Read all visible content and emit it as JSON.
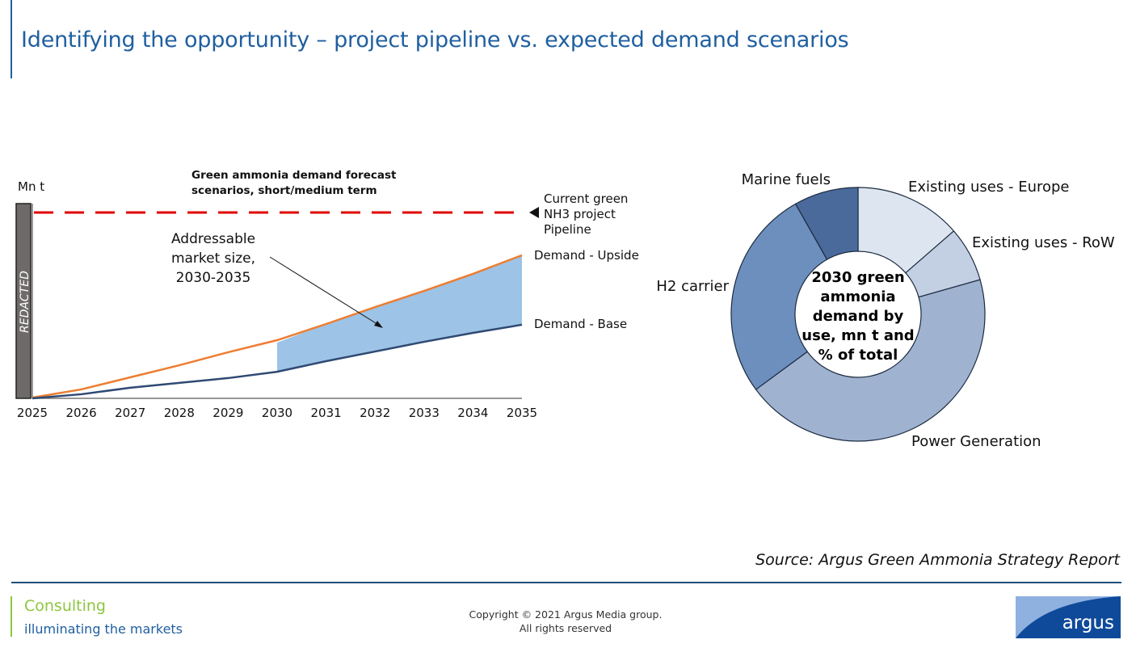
{
  "header": {
    "title": "Identifying the opportunity – project pipeline vs. expected demand scenarios"
  },
  "chart_data": [
    {
      "type": "line",
      "title": "Green ammonia demand forecast scenarios, short/medium term",
      "title_lines": [
        "Green ammonia demand forecast",
        "scenarios, short/medium term"
      ],
      "ylabel": "Mn t",
      "y_axis_redacted_label": "REDACTED",
      "x": [
        "2025",
        "2026",
        "2027",
        "2028",
        "2029",
        "2030",
        "2031",
        "2032",
        "2033",
        "2034",
        "2035"
      ],
      "ylim_relative": [
        0,
        100
      ],
      "series": [
        {
          "name": "Demand - Upside",
          "color": "#ed7d31",
          "values": [
            0.4,
            4.8,
            11.3,
            17.8,
            24.8,
            31.3,
            40,
            49.1,
            57.8,
            67,
            77
          ]
        },
        {
          "name": "Demand - Base",
          "color": "#2f4a73",
          "values": [
            0,
            2.2,
            5.7,
            8.3,
            10.9,
            14.3,
            20,
            25.2,
            30.4,
            35.2,
            39.6
          ]
        }
      ],
      "reference_line": {
        "name_lines": [
          "Current green",
          "NH3 project",
          "Pipeline"
        ],
        "value": 100,
        "color": "#e00000",
        "style": "dashed"
      },
      "shaded_area": {
        "label_lines": [
          "Addressable",
          "market size,",
          "2030-2035"
        ],
        "from": "2030",
        "to": "2035",
        "color": "#9dc3e6"
      },
      "grid": false
    },
    {
      "type": "pie",
      "donut": true,
      "center_label_lines": [
        "2030 green",
        "ammonia",
        "demand by",
        "use, mn t and",
        "% of total"
      ],
      "unit": "% of total (estimated from slice angles)",
      "slices": [
        {
          "label": "Existing uses - Europe",
          "value": 13.6,
          "color": "#dde5f0"
        },
        {
          "label": "Existing uses - RoW",
          "value": 7,
          "color": "#c3cfe2"
        },
        {
          "label": "Power Generation",
          "value": 44.3,
          "color": "#9fb2cf"
        },
        {
          "label": "H2 carrier",
          "value": 26.9,
          "color": "#6d8fbd"
        },
        {
          "label": "Marine fuels",
          "value": 8.2,
          "color": "#4a6a9b"
        }
      ]
    }
  ],
  "source": "Source: Argus Green Ammonia Strategy Report",
  "footer": {
    "consulting": "Consulting",
    "tagline": "illuminating the markets",
    "copyright_line1": "Copyright © 2021 Argus Media group.",
    "copyright_line2": "All rights reserved",
    "logo_text": "argus"
  }
}
